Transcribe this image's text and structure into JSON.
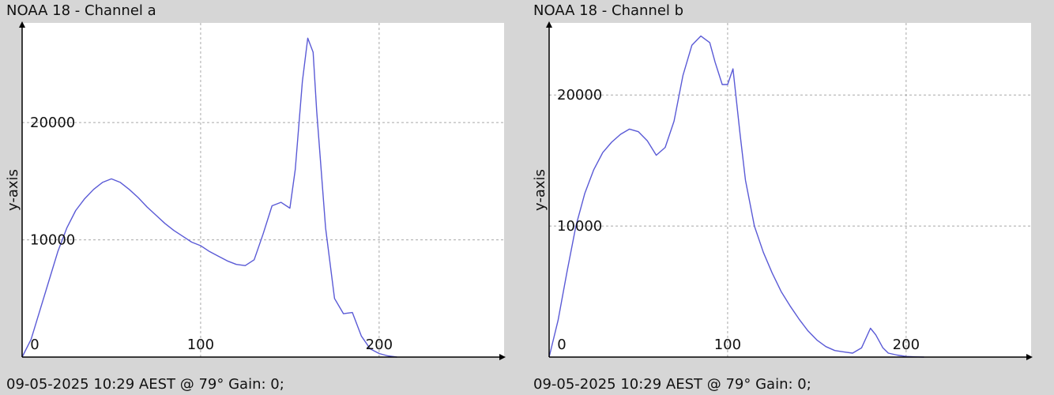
{
  "colors": {
    "background": "#d6d6d6",
    "plot_background": "#ffffff",
    "line": "#5a5ad6",
    "grid": "#a8a8a8",
    "axis": "#000000"
  },
  "chart_data": [
    {
      "type": "line",
      "title": "NOAA 18 - Channel a",
      "ylabel": "y-axis",
      "xlabel": "",
      "footer": "09-05-2025 10:29 AEST @ 79° Gain: 0;",
      "xlim": [
        0,
        270
      ],
      "ylim": [
        0,
        28500
      ],
      "xticks": [
        0,
        100,
        200
      ],
      "yticks": [
        10000,
        20000
      ],
      "grid": true,
      "series": [
        {
          "x": [
            0,
            5,
            10,
            15,
            20,
            25,
            30,
            35,
            40,
            45,
            50,
            55,
            60,
            65,
            70,
            75,
            80,
            85,
            90,
            95,
            100,
            105,
            110,
            115,
            120,
            125,
            130,
            135,
            140,
            145,
            150,
            153,
            157,
            160,
            163,
            165,
            170,
            175,
            180,
            185,
            190,
            195,
            200,
            205,
            210
          ],
          "y": [
            0,
            1500,
            4000,
            6500,
            9000,
            11000,
            12500,
            13500,
            14300,
            14900,
            15200,
            14900,
            14300,
            13600,
            12800,
            12100,
            11400,
            10800,
            10300,
            9800,
            9500,
            9000,
            8600,
            8200,
            7900,
            7800,
            8300,
            10500,
            12900,
            13200,
            12700,
            16000,
            23500,
            27200,
            26000,
            21000,
            11000,
            5000,
            3700,
            3800,
            1800,
            700,
            300,
            100,
            0
          ]
        }
      ]
    },
    {
      "type": "line",
      "title": "NOAA 18 - Channel b",
      "ylabel": "y-axis",
      "xlabel": "",
      "footer": "09-05-2025 10:29 AEST @ 79° Gain: 0;",
      "xlim": [
        0,
        270
      ],
      "ylim": [
        0,
        25500
      ],
      "xticks": [
        0,
        100,
        200
      ],
      "yticks": [
        10000,
        20000
      ],
      "grid": true,
      "series": [
        {
          "x": [
            0,
            5,
            10,
            15,
            20,
            25,
            30,
            35,
            40,
            45,
            50,
            55,
            60,
            65,
            70,
            75,
            80,
            85,
            90,
            93,
            97,
            100,
            103,
            107,
            110,
            115,
            120,
            125,
            130,
            135,
            140,
            145,
            150,
            155,
            160,
            165,
            170,
            175,
            180,
            183,
            187,
            190,
            195,
            200,
            205,
            210
          ],
          "y": [
            0,
            2800,
            6500,
            10000,
            12500,
            14300,
            15600,
            16400,
            17000,
            17400,
            17200,
            16500,
            15400,
            16000,
            18000,
            21500,
            23800,
            24500,
            24000,
            22500,
            20800,
            20800,
            22000,
            17000,
            13500,
            10000,
            8000,
            6400,
            5000,
            3900,
            2900,
            2000,
            1300,
            800,
            500,
            400,
            300,
            700,
            2200,
            1700,
            700,
            300,
            150,
            50,
            20,
            0
          ]
        }
      ]
    }
  ]
}
